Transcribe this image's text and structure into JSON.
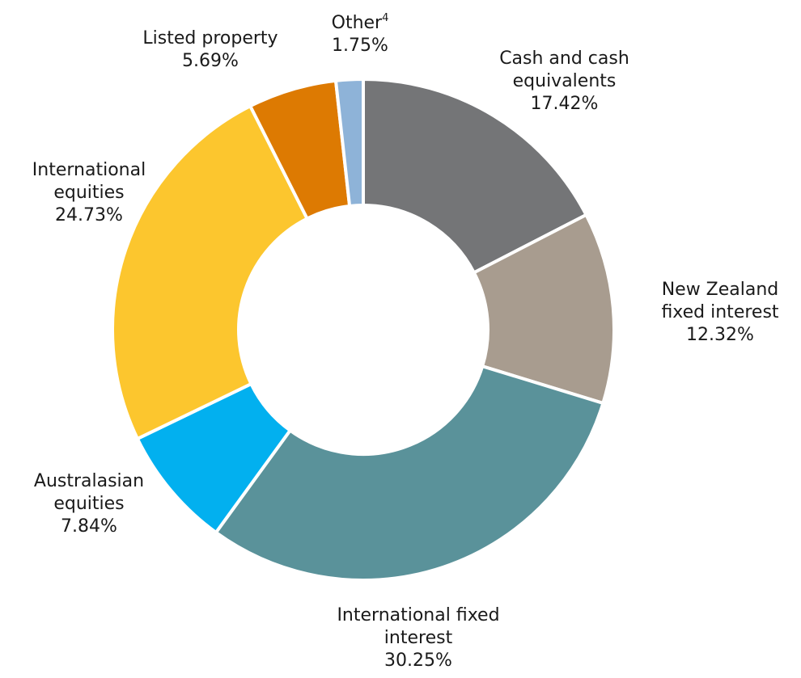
{
  "chart_data": {
    "type": "pie",
    "variant": "donut",
    "title": "",
    "slices": [
      {
        "label_lines": [
          "Cash and cash",
          "equivalents"
        ],
        "value": 17.42,
        "value_label": "17.42%",
        "color": "#747577"
      },
      {
        "label_lines": [
          "New Zealand",
          "fixed interest"
        ],
        "value": 12.32,
        "value_label": "12.32%",
        "color": "#a89c8f"
      },
      {
        "label_lines": [
          "International fixed",
          "interest"
        ],
        "value": 30.25,
        "value_label": "30.25%",
        "color": "#5a929a"
      },
      {
        "label_lines": [
          "Australasian",
          "equities"
        ],
        "value": 7.84,
        "value_label": "7.84%",
        "color": "#02b0ef"
      },
      {
        "label_lines": [
          "International",
          "equities"
        ],
        "value": 24.73,
        "value_label": "24.73%",
        "color": "#fcc62e"
      },
      {
        "label_lines": [
          "Listed property"
        ],
        "value": 5.69,
        "value_label": "5.69%",
        "color": "#dd7a02"
      },
      {
        "label_lines": [
          "Other"
        ],
        "footnote": "4",
        "value": 1.75,
        "value_label": "1.75%",
        "color": "#8eb3d8"
      }
    ],
    "start_angle_deg": 0,
    "direction": "clockwise",
    "legend": "none"
  }
}
